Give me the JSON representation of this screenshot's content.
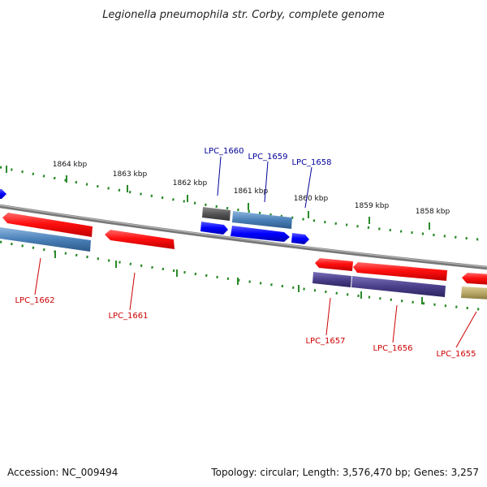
{
  "title": "Legionella pneumophila str. Corby, complete genome",
  "accession": "Accession: NC_009494",
  "summary": "Topology: circular; Length: 3,576,470 bp; Genes: 3,257",
  "ruler_labels": [
    "1864 kbp",
    "1863 kbp",
    "1862 kbp",
    "1861 kbp",
    "1860 kbp",
    "1859 kbp",
    "1858 kbp"
  ],
  "colors": {
    "backbone": "#888888",
    "forward_red": "#ff1a1a",
    "cds_blue": "#0000ff",
    "steel_blue": "#4a80b8",
    "gray": "#555555",
    "purple": "#4a3f8a",
    "olive": "#b8a868",
    "tick_green": "#2a8a2a",
    "label_red": "#cc0000",
    "label_blue": "#000099"
  },
  "genes": [
    {
      "id": "LPC_1662",
      "color_key": "forward_red"
    },
    {
      "id": "LPC_1661",
      "color_key": "forward_red"
    },
    {
      "id": "LPC_1660",
      "color_key": "gray"
    },
    {
      "id": "LPC_1659",
      "color_key": "steel_blue"
    },
    {
      "id": "LPC_1658",
      "color_key": "cds_blue"
    },
    {
      "id": "LPC_1657",
      "color_key": "forward_red"
    },
    {
      "id": "LPC_1656",
      "color_key": "forward_red"
    },
    {
      "id": "LPC_1655",
      "color_key": "forward_red"
    }
  ]
}
